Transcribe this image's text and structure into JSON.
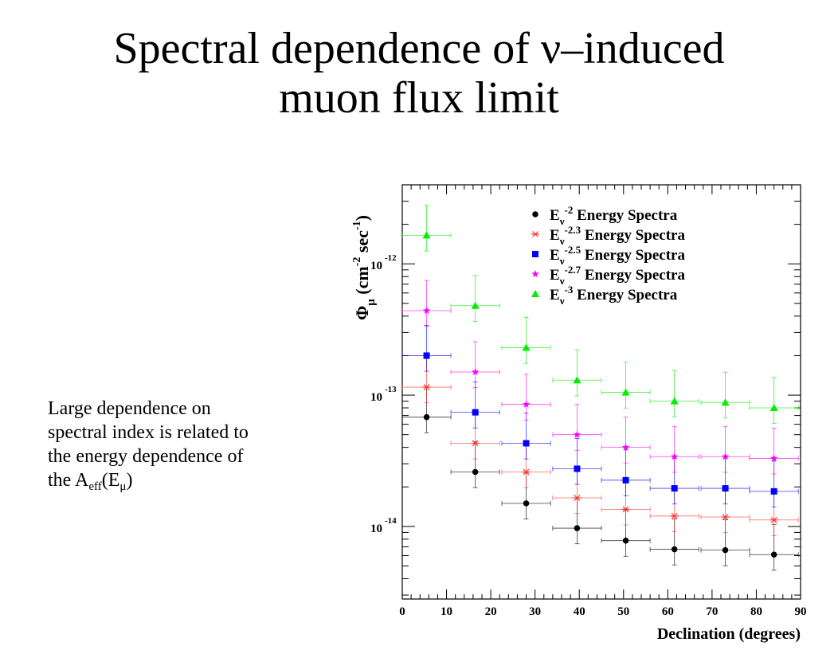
{
  "slide": {
    "title_line1": "Spectral dependence of ν–induced",
    "title_line2": "muon flux limit",
    "caption_text": "Large dependence on spectral index is related to the energy dependence of the ",
    "caption_A": "A",
    "caption_eff": "eff",
    "caption_Emu_open": "(E",
    "caption_mu": "μ",
    "caption_close": ")"
  },
  "chart_data": {
    "type": "scatter",
    "title": "",
    "xlabel": "Declination (degrees)",
    "ylabel": "Φμ (cm⁻² sec⁻¹)",
    "ylabel_parts": {
      "phi": "Φ",
      "mu": "μ",
      "unit_open": " (cm",
      "exp1": "-2",
      "sec": " sec",
      "exp2": "-1",
      "close": ")"
    },
    "xlim": [
      0,
      90
    ],
    "ylim": [
      2.8e-15,
      4e-12
    ],
    "y_scale": "log",
    "x_ticks": [
      0,
      10,
      20,
      30,
      40,
      50,
      60,
      70,
      80,
      90
    ],
    "y_ticks": [
      {
        "value": 1e-12,
        "base": "10",
        "exp": "-12"
      },
      {
        "value": 1e-13,
        "base": "10",
        "exp": "-13"
      },
      {
        "value": 1e-14,
        "base": "10",
        "exp": "-14"
      }
    ],
    "legend_position": "top-right",
    "grid": false,
    "x": [
      5.5,
      16.5,
      28,
      39.5,
      50.5,
      61.5,
      73,
      84
    ],
    "xerr": [
      5.5,
      5.5,
      5.5,
      5.5,
      5.5,
      5.5,
      5.5,
      5.5
    ],
    "series": [
      {
        "name": "Eν-2 Energy Spectra",
        "legend_base": "E",
        "legend_sub": "ν",
        "legend_exp": "-2",
        "legend_text": " Energy Spectra",
        "marker": "circle",
        "color": "#000000",
        "y": [
          6.8e-14,
          2.6e-14,
          1.5e-14,
          9.7e-15,
          7.8e-15,
          6.7e-15,
          6.6e-15,
          6.1e-15
        ]
      },
      {
        "name": "Eν-2.3 Energy Spectra",
        "legend_base": "E",
        "legend_sub": "ν",
        "legend_exp": "-2.3",
        "legend_text": " Energy Spectra",
        "marker": "asterisk",
        "color": "#ff3333",
        "y": [
          1.15e-13,
          4.3e-14,
          2.6e-14,
          1.65e-14,
          1.35e-14,
          1.2e-14,
          1.18e-14,
          1.12e-14
        ]
      },
      {
        "name": "Eν-2.5 Energy Spectra",
        "legend_base": "E",
        "legend_sub": "ν",
        "legend_exp": "-2.5",
        "legend_text": " Energy Spectra",
        "marker": "square",
        "color": "#0000ff",
        "y": [
          2e-13,
          7.4e-14,
          4.3e-14,
          2.75e-14,
          2.25e-14,
          1.95e-14,
          1.95e-14,
          1.85e-14
        ]
      },
      {
        "name": "Eν-2.7 Energy Spectra",
        "legend_base": "E",
        "legend_sub": "ν",
        "legend_exp": "-2.7",
        "legend_text": " Energy Spectra",
        "marker": "star",
        "color": "#ff00ff",
        "y": [
          4.4e-13,
          1.5e-13,
          8.5e-14,
          5e-14,
          4e-14,
          3.4e-14,
          3.4e-14,
          3.3e-14
        ]
      },
      {
        "name": "Eν-3 Energy Spectra",
        "legend_base": "E",
        "legend_sub": "ν",
        "legend_exp": "-3",
        "legend_text": " Energy Spectra",
        "marker": "triangle",
        "color": "#00ee00",
        "y": [
          1.65e-12,
          4.8e-13,
          2.3e-13,
          1.3e-13,
          1.05e-13,
          9e-14,
          8.8e-14,
          8e-14
        ]
      }
    ],
    "yerr_factor_up": 1.7,
    "yerr_factor_down": 0.76
  }
}
